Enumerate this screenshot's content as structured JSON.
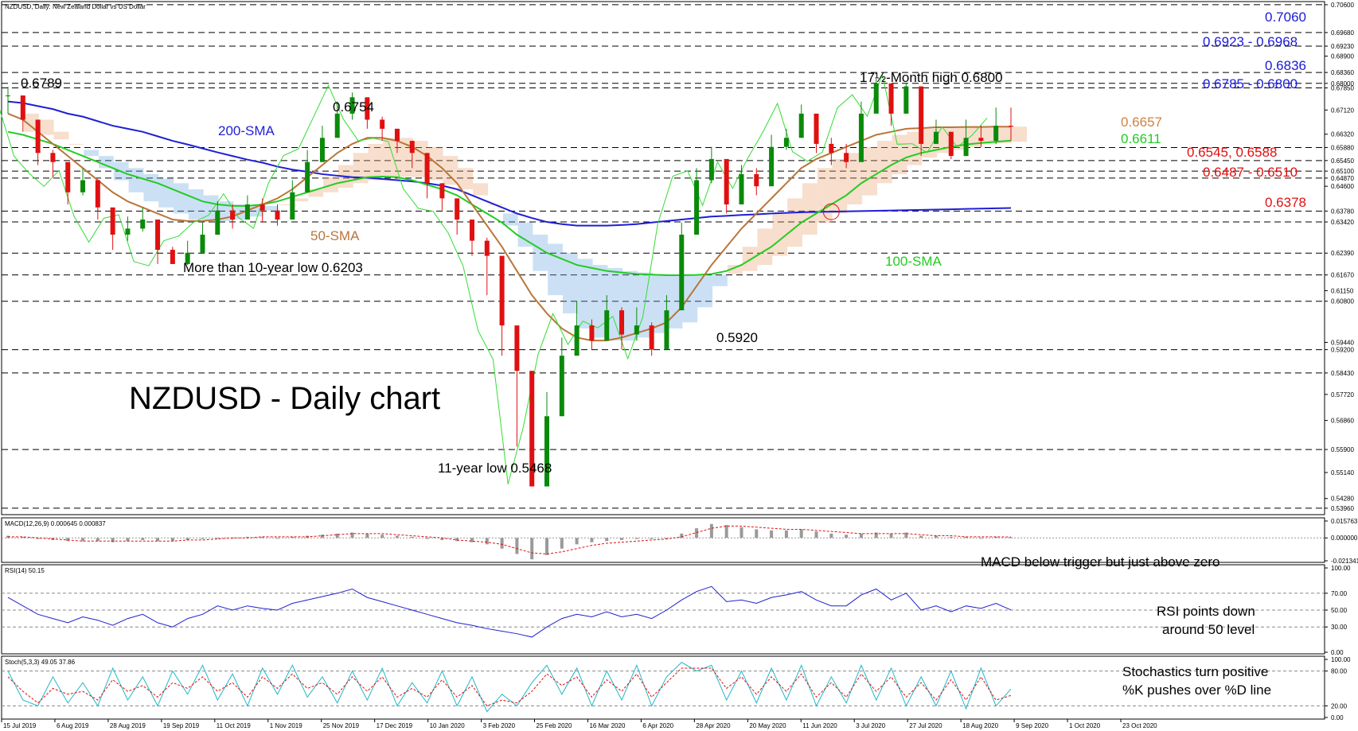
{
  "header": {
    "symbol_info": "NZDUSD, Daily:  New Zealand Dollar vs US Dollar",
    "macd_label": "MACD(12,26,9) 0.000645 0.000837",
    "rsi_label": "RSI(14) 50.15",
    "stoch_label": "Stoch(5,3,3) 49.05 37.86"
  },
  "colors": {
    "sma200": "#1f1fd6",
    "sma100": "#22cc22",
    "sma50": "#b8763a",
    "tenkan": "#e01010",
    "kijun": "#2030e0",
    "chikou": "#33dd33",
    "cloud_bull": "#e8a070",
    "cloud_bear": "#6aa6e0",
    "level_blue": "#1a1ad6",
    "level_red": "#e01010",
    "level_orange": "#d08040",
    "level_green": "#22cc22"
  },
  "chart_data": {
    "type": "line",
    "title": "NZDUSD - Daily chart",
    "x_labels": [
      "15 Jul 2019",
      "6 Aug 2019",
      "28 Aug 2019",
      "19 Sep 2019",
      "11 Oct 2019",
      "1 Nov 2019",
      "25 Nov 2019",
      "17 Dec 2019",
      "10 Jan 2020",
      "3 Feb 2020",
      "25 Feb 2020",
      "16 Mar 2020",
      "6 Apr 2020",
      "28 Apr 2020",
      "20 May 2020",
      "11 Jun 2020",
      "3 Jul 2020",
      "27 Jul 2020",
      "18 Aug 2020",
      "9 Sep 2020",
      "1 Oct 2020",
      "23 Oct 2020"
    ],
    "y_ticks": [
      "0.70600",
      "0.69680",
      "0.69230",
      "0.68900",
      "0.68360",
      "0.68000",
      "0.67850",
      "0.67120",
      "0.66320",
      "0.65880",
      "0.65450",
      "0.65100",
      "0.64870",
      "0.64600",
      "0.63780",
      "0.63420",
      "0.62390",
      "0.61670",
      "0.61150",
      "0.60800",
      "0.59440",
      "0.59200",
      "0.58430",
      "0.57720",
      "0.56860",
      "0.55900",
      "0.55140",
      "0.54280",
      "0.53960"
    ],
    "ylim": [
      0.538,
      0.7065
    ],
    "horizontal_levels": [
      0.706,
      0.6968,
      0.6923,
      0.6836,
      0.68,
      0.6785,
      0.6588,
      0.6545,
      0.651,
      0.6487,
      0.6378,
      0.6342,
      0.6239,
      0.6167,
      0.608,
      0.592,
      0.5843,
      0.559,
      0.5396
    ],
    "price_close": [
      0.676,
      0.668,
      0.657,
      0.654,
      0.644,
      0.648,
      0.639,
      0.63,
      0.632,
      0.635,
      0.625,
      0.6203,
      0.624,
      0.63,
      0.638,
      0.635,
      0.64,
      0.638,
      0.635,
      0.644,
      0.654,
      0.662,
      0.67,
      0.6754,
      0.668,
      0.665,
      0.661,
      0.657,
      0.647,
      0.642,
      0.635,
      0.628,
      0.623,
      0.6,
      0.585,
      0.5468,
      0.57,
      0.59,
      0.6,
      0.595,
      0.605,
      0.597,
      0.6,
      0.592,
      0.605,
      0.63,
      0.648,
      0.655,
      0.64,
      0.65,
      0.646,
      0.659,
      0.662,
      0.67,
      0.66,
      0.657,
      0.654,
      0.67,
      0.68,
      0.67,
      0.679,
      0.66,
      0.664,
      0.656,
      0.662,
      0.661,
      0.666,
      0.6657
    ],
    "price_high": [
      0.6789,
      0.672,
      0.662,
      0.658,
      0.649,
      0.652,
      0.643,
      0.634,
      0.636,
      0.639,
      0.63,
      0.626,
      0.628,
      0.634,
      0.641,
      0.64,
      0.643,
      0.642,
      0.64,
      0.648,
      0.658,
      0.666,
      0.674,
      0.677,
      0.672,
      0.669,
      0.665,
      0.661,
      0.652,
      0.646,
      0.64,
      0.633,
      0.629,
      0.61,
      0.595,
      0.58,
      0.578,
      0.596,
      0.608,
      0.602,
      0.61,
      0.606,
      0.606,
      0.601,
      0.61,
      0.634,
      0.652,
      0.659,
      0.648,
      0.653,
      0.652,
      0.663,
      0.665,
      0.673,
      0.668,
      0.662,
      0.66,
      0.674,
      0.6815,
      0.676,
      0.68,
      0.666,
      0.668,
      0.662,
      0.668,
      0.666,
      0.672,
      0.672
    ],
    "price_low": [
      0.67,
      0.664,
      0.653,
      0.649,
      0.64,
      0.643,
      0.635,
      0.625,
      0.628,
      0.631,
      0.6203,
      0.6203,
      0.62,
      0.626,
      0.634,
      0.632,
      0.636,
      0.634,
      0.633,
      0.64,
      0.65,
      0.659,
      0.665,
      0.668,
      0.665,
      0.661,
      0.657,
      0.652,
      0.642,
      0.638,
      0.63,
      0.623,
      0.61,
      0.59,
      0.56,
      0.5468,
      0.56,
      0.583,
      0.593,
      0.592,
      0.599,
      0.592,
      0.595,
      0.59,
      0.6,
      0.625,
      0.642,
      0.647,
      0.637,
      0.644,
      0.643,
      0.655,
      0.658,
      0.662,
      0.657,
      0.653,
      0.652,
      0.662,
      0.672,
      0.666,
      0.67,
      0.656,
      0.66,
      0.655,
      0.658,
      0.659,
      0.66,
      0.6611
    ],
    "sma200": [
      0.674,
      0.6735,
      0.6725,
      0.6715,
      0.67,
      0.669,
      0.6675,
      0.666,
      0.665,
      0.664,
      0.6625,
      0.661,
      0.6598,
      0.6585,
      0.6572,
      0.656,
      0.6548,
      0.6538,
      0.6525,
      0.6515,
      0.6508,
      0.65,
      0.6495,
      0.649,
      0.6488,
      0.6484,
      0.648,
      0.6476,
      0.647,
      0.6462,
      0.645,
      0.643,
      0.641,
      0.639,
      0.637,
      0.6355,
      0.6342,
      0.6335,
      0.633,
      0.633,
      0.633,
      0.6332,
      0.6335,
      0.634,
      0.6345,
      0.635,
      0.6355,
      0.636,
      0.6362,
      0.6365,
      0.6367,
      0.637,
      0.6372,
      0.6374,
      0.6375,
      0.6376,
      0.6377,
      0.6378,
      0.6379,
      0.638,
      0.6381,
      0.6382,
      0.6383,
      0.6384,
      0.6385,
      0.6386,
      0.6387,
      0.6388
    ],
    "sma100": [
      0.664,
      0.663,
      0.6615,
      0.66,
      0.658,
      0.656,
      0.654,
      0.652,
      0.65,
      0.6485,
      0.647,
      0.645,
      0.643,
      0.641,
      0.64,
      0.6395,
      0.6395,
      0.64,
      0.641,
      0.6425,
      0.644,
      0.6455,
      0.647,
      0.648,
      0.649,
      0.6492,
      0.649,
      0.648,
      0.6465,
      0.645,
      0.643,
      0.64,
      0.637,
      0.634,
      0.63,
      0.627,
      0.624,
      0.622,
      0.62,
      0.619,
      0.618,
      0.6175,
      0.617,
      0.6168,
      0.6166,
      0.6166,
      0.6167,
      0.617,
      0.618,
      0.62,
      0.623,
      0.626,
      0.63,
      0.634,
      0.637,
      0.64,
      0.643,
      0.647,
      0.65,
      0.653,
      0.6555,
      0.657,
      0.658,
      0.659,
      0.6598,
      0.6603,
      0.6607,
      0.6611
    ],
    "sma50": [
      0.67,
      0.668,
      0.664,
      0.66,
      0.656,
      0.652,
      0.648,
      0.644,
      0.641,
      0.639,
      0.637,
      0.635,
      0.6345,
      0.6345,
      0.635,
      0.636,
      0.638,
      0.64,
      0.642,
      0.645,
      0.649,
      0.653,
      0.657,
      0.66,
      0.662,
      0.662,
      0.661,
      0.659,
      0.656,
      0.652,
      0.647,
      0.64,
      0.633,
      0.626,
      0.618,
      0.61,
      0.604,
      0.599,
      0.596,
      0.595,
      0.595,
      0.596,
      0.5975,
      0.599,
      0.601,
      0.606,
      0.613,
      0.62,
      0.626,
      0.632,
      0.637,
      0.642,
      0.647,
      0.652,
      0.655,
      0.657,
      0.659,
      0.661,
      0.663,
      0.664,
      0.665,
      0.6652,
      0.6655,
      0.6655,
      0.6656,
      0.6656,
      0.6657,
      0.6657
    ],
    "macd": [
      0.002,
      0.001,
      -0.001,
      -0.002,
      -0.003,
      -0.003,
      -0.003,
      -0.004,
      -0.003,
      -0.002,
      -0.003,
      -0.003,
      -0.002,
      -0.001,
      0.0,
      0.0,
      0.001,
      0.001,
      0.0,
      0.001,
      0.002,
      0.003,
      0.004,
      0.005,
      0.004,
      0.003,
      0.002,
      0.001,
      -0.001,
      -0.002,
      -0.003,
      -0.004,
      -0.006,
      -0.01,
      -0.015,
      -0.02,
      -0.016,
      -0.01,
      -0.006,
      -0.004,
      -0.003,
      -0.002,
      -0.001,
      -0.001,
      0.0,
      0.004,
      0.009,
      0.013,
      0.012,
      0.01,
      0.008,
      0.007,
      0.007,
      0.008,
      0.006,
      0.004,
      0.003,
      0.004,
      0.005,
      0.004,
      0.005,
      0.002,
      0.002,
      0.001,
      0.001,
      0.0,
      0.001,
      0.000645
    ],
    "macd_signal": [
      0.001,
      0.001,
      0.0,
      -0.001,
      -0.002,
      -0.003,
      -0.003,
      -0.003,
      -0.003,
      -0.003,
      -0.003,
      -0.003,
      -0.002,
      -0.002,
      -0.001,
      0.0,
      0.0,
      0.001,
      0.001,
      0.001,
      0.001,
      0.002,
      0.003,
      0.004,
      0.004,
      0.004,
      0.003,
      0.002,
      0.001,
      0.0,
      -0.002,
      -0.003,
      -0.004,
      -0.006,
      -0.01,
      -0.014,
      -0.015,
      -0.013,
      -0.01,
      -0.007,
      -0.005,
      -0.004,
      -0.003,
      -0.002,
      -0.001,
      0.001,
      0.005,
      0.009,
      0.011,
      0.011,
      0.01,
      0.009,
      0.008,
      0.008,
      0.007,
      0.006,
      0.005,
      0.004,
      0.004,
      0.004,
      0.004,
      0.003,
      0.002,
      0.002,
      0.001,
      0.001,
      0.001,
      0.000837
    ],
    "rsi": [
      65,
      55,
      45,
      40,
      35,
      42,
      38,
      32,
      40,
      45,
      35,
      30,
      40,
      45,
      55,
      50,
      55,
      52,
      50,
      58,
      62,
      66,
      70,
      75,
      65,
      60,
      55,
      50,
      45,
      40,
      35,
      32,
      28,
      25,
      22,
      18,
      30,
      40,
      45,
      42,
      48,
      42,
      45,
      40,
      50,
      62,
      72,
      78,
      60,
      62,
      58,
      65,
      68,
      72,
      62,
      55,
      55,
      68,
      75,
      62,
      70,
      50,
      55,
      48,
      55,
      52,
      58,
      50.15
    ],
    "stoch_k": [
      80,
      30,
      20,
      70,
      25,
      60,
      20,
      85,
      30,
      70,
      20,
      80,
      40,
      90,
      30,
      75,
      20,
      85,
      40,
      90,
      35,
      70,
      25,
      80,
      30,
      85,
      20,
      60,
      25,
      80,
      20,
      70,
      10,
      40,
      20,
      60,
      90,
      40,
      85,
      20,
      80,
      30,
      90,
      20,
      70,
      95,
      80,
      90,
      30,
      80,
      25,
      85,
      30,
      90,
      20,
      70,
      25,
      90,
      30,
      85,
      20,
      70,
      20,
      80,
      15,
      85,
      20,
      49.05
    ],
    "stoch_d": [
      70,
      45,
      25,
      50,
      40,
      45,
      30,
      65,
      45,
      55,
      35,
      60,
      50,
      70,
      45,
      60,
      35,
      70,
      50,
      75,
      50,
      60,
      40,
      70,
      45,
      70,
      35,
      50,
      35,
      65,
      35,
      55,
      20,
      30,
      25,
      45,
      75,
      55,
      70,
      35,
      65,
      45,
      75,
      35,
      60,
      85,
      85,
      85,
      50,
      70,
      40,
      70,
      45,
      75,
      35,
      60,
      35,
      75,
      45,
      70,
      35,
      60,
      30,
      65,
      30,
      70,
      30,
      37.86
    ],
    "rsi_levels": [
      70,
      50,
      30
    ],
    "stoch_levels": [
      80,
      20
    ]
  },
  "annotations": {
    "title": "NZDUSD - Daily chart",
    "high_6789": "0.6789",
    "high_6754": "0.6754",
    "sma200": "200-SMA",
    "sma50": "50-SMA",
    "sma100": "100-SMA",
    "low_6203": "More than 10-year low 0.6203",
    "low_5468": "11-year low 0.5468",
    "low_5920": "0.5920",
    "high_6800": "17½-Month high 0.6800",
    "macd_note": "MACD below trigger but just above zero",
    "rsi_note_1": "RSI points down",
    "rsi_note_2": "around 50 level",
    "stoch_note_1": "Stochastics turn positive",
    "stoch_note_2": "%K pushes over %D line"
  },
  "levels_right": {
    "l7060": "0.7060",
    "l6923": "0.6923 - 0.6968",
    "l6836": "0.6836",
    "l6785": "0.6785 - 0.6800",
    "l6657": "0.6657",
    "l6611": "0.6611",
    "l6545": "0.6545, 0.6588",
    "l6487": "0.6487 - 0.6510",
    "l6378": "0.6378"
  },
  "subpanel_ticks": {
    "macd": [
      "0.015763",
      "0.000000",
      "-0.021341"
    ],
    "rsi": [
      "100.00",
      "70.00",
      "50.00",
      "30.00",
      "0.00"
    ],
    "stoch": [
      "100.00",
      "80.00",
      "20.00",
      "0.00"
    ]
  }
}
